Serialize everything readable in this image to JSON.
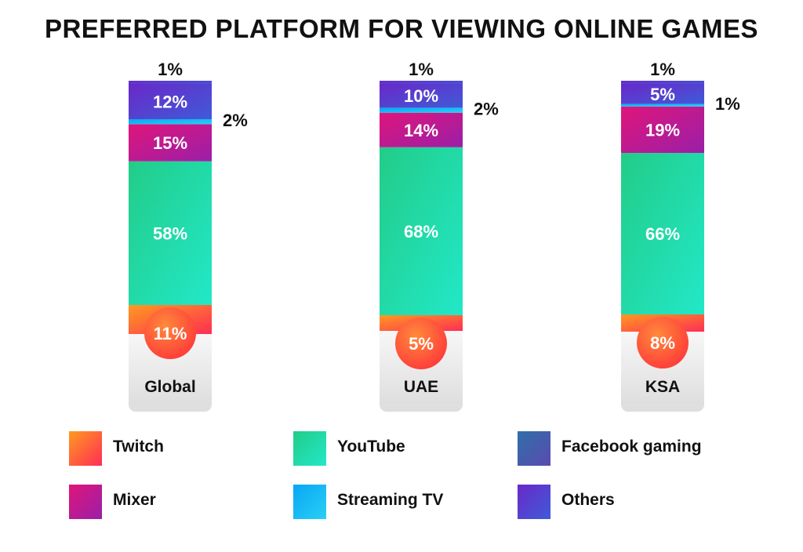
{
  "title": "PREFERRED PLATFORM FOR VIEWING ONLINE GAMES",
  "colors": {
    "Twitch": [
      "#ff9a1f",
      "#ff2d55"
    ],
    "YouTube": [
      "#22cc88",
      "#22e8c8"
    ],
    "Facebook gaming": [
      "#2f6fa8",
      "#5a4bb0"
    ],
    "Mixer": [
      "#e0157a",
      "#9a1fa8"
    ],
    "Streaming TV": [
      "#0aa5f5",
      "#28d0f5"
    ],
    "Others": [
      "#6a28c8",
      "#3f5bd8"
    ]
  },
  "legend": [
    {
      "name": "Twitch"
    },
    {
      "name": "YouTube"
    },
    {
      "name": "Facebook gaming"
    },
    {
      "name": "Mixer"
    },
    {
      "name": "Streaming TV"
    },
    {
      "name": "Others"
    }
  ],
  "chart_data": {
    "type": "bar",
    "stacked": true,
    "title": "PREFERRED PLATFORM FOR VIEWING ONLINE GAMES",
    "categories": [
      "Global",
      "UAE",
      "KSA"
    ],
    "unit": "%",
    "series": [
      {
        "name": "Twitch",
        "values": [
          11,
          5,
          8
        ]
      },
      {
        "name": "YouTube",
        "values": [
          58,
          68,
          66
        ]
      },
      {
        "name": "Facebook gaming",
        "values": [
          0,
          0,
          0
        ]
      },
      {
        "name": "Mixer",
        "values": [
          15,
          14,
          19
        ]
      },
      {
        "name": "Streaming TV",
        "values": [
          2,
          2,
          1
        ]
      },
      {
        "name": "Others",
        "values": [
          12,
          10,
          5
        ]
      }
    ],
    "extra_labels": [
      {
        "category": "Global",
        "value": 1
      },
      {
        "category": "UAE",
        "value": 1
      },
      {
        "category": "KSA",
        "value": 1
      }
    ],
    "legend_position": "bottom"
  }
}
